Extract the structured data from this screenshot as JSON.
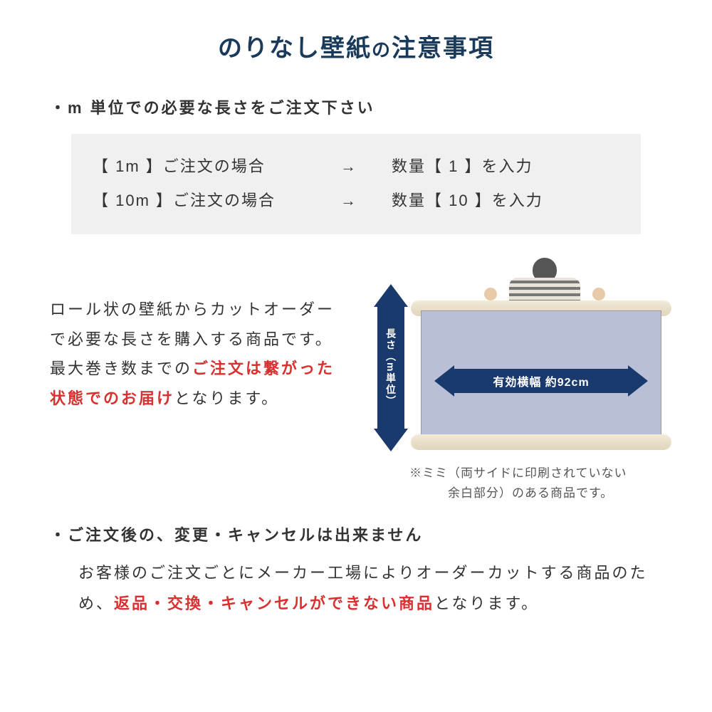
{
  "colors": {
    "title": "#1a3a5c",
    "arrow": "#1a3a6e",
    "red": "#d93030",
    "example_bg": "#f0f0f0",
    "sheet": "#b8bfd6",
    "roll": "#e8ddc5",
    "text": "#333333"
  },
  "title": {
    "main": "のりなし壁紙",
    "connector": "の",
    "sub": "注意事項"
  },
  "section1": {
    "bullet": "・m 単位での必要な長さをご注文下さい",
    "examples": [
      {
        "left": "【 1m 】ご注文の場合",
        "arrow": "→",
        "right": "数量【 1 】を入力"
      },
      {
        "left": "【 10m 】ご注文の場合",
        "arrow": "→",
        "right": "数量【 10 】を入力"
      }
    ]
  },
  "description": {
    "line1": "ロール状の壁紙からカットオーダーで必要な長さを購入する商品です。最大巻き数までの",
    "red": "ご注文は繋がった状態でのお届け",
    "line3": "となります。"
  },
  "illustration": {
    "v_arrow_label": "長さ（m単位）",
    "h_arrow_label": "有効横幅 約92cm",
    "caption_prefix": "※ミミ（両サイドに印刷されていない",
    "caption_line2": "余白部分）のある商品です。"
  },
  "section2": {
    "bullet": "・ご注文後の、変更・キャンセルは出来ません",
    "body_pre": "お客様のご注文ごとにメーカー工場によりオーダーカットする商品のため、",
    "body_red": "返品・交換・キャンセルができない商品",
    "body_post": "となります。"
  }
}
